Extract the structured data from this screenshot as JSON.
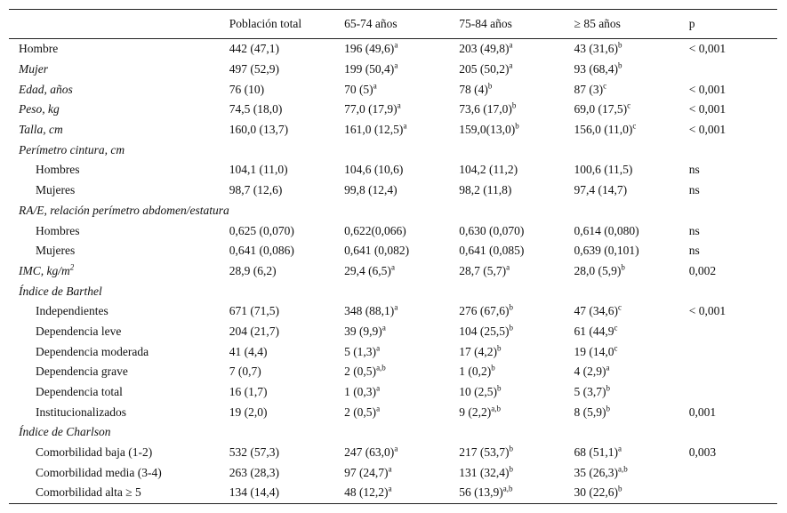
{
  "table": {
    "header": [
      "Población total",
      "65-74 años",
      "75-84 años",
      "≥ 85 años",
      "p"
    ],
    "rows": [
      {
        "label": "Hombre",
        "kind": "plain",
        "cells": [
          {
            "text": "442 (47,1)"
          },
          {
            "text": "196 (49,6)",
            "sup": "a"
          },
          {
            "text": "203 (49,8)",
            "sup": "a"
          },
          {
            "text": "43 (31,6)",
            "sup": "b"
          },
          {
            "text": "< 0,001"
          }
        ]
      },
      {
        "label": "Mujer",
        "kind": "italic",
        "cells": [
          {
            "text": "497 (52,9)"
          },
          {
            "text": "199 (50,4)",
            "sup": "a"
          },
          {
            "text": "205 (50,2)",
            "sup": "a"
          },
          {
            "text": "93 (68,4)",
            "sup": "b"
          }
        ]
      },
      {
        "label": "Edad, años",
        "kind": "italic",
        "cells": [
          {
            "text": "76 (10)"
          },
          {
            "text": "70 (5)",
            "sup": "a"
          },
          {
            "text": "78 (4)",
            "sup": "b"
          },
          {
            "text": "87 (3)",
            "sup": "c"
          },
          {
            "text": "< 0,001"
          }
        ]
      },
      {
        "label": "Peso, kg",
        "kind": "italic",
        "cells": [
          {
            "text": "74,5 (18,0)"
          },
          {
            "text": "77,0 (17,9)",
            "sup": "a"
          },
          {
            "text": "73,6 (17,0)",
            "sup": "b"
          },
          {
            "text": "69,0 (17,5)",
            "sup": "c"
          },
          {
            "text": "< 0,001"
          }
        ]
      },
      {
        "label": "Talla, cm",
        "kind": "italic",
        "cells": [
          {
            "text": "160,0 (13,7)"
          },
          {
            "text": "161,0 (12,5)",
            "sup": "a"
          },
          {
            "text": "159,0(13,0)",
            "sup": "b"
          },
          {
            "text": "156,0 (11,0)",
            "sup": "c"
          },
          {
            "text": "< 0,001"
          }
        ]
      },
      {
        "label": "Perímetro cintura, cm",
        "kind": "italic"
      },
      {
        "label": "Hombres",
        "kind": "indent",
        "cells": [
          {
            "text": "104,1 (11,0)"
          },
          {
            "text": "104,6 (10,6)"
          },
          {
            "text": "104,2 (11,2)"
          },
          {
            "text": "100,6 (11,5)"
          },
          {
            "text": "ns"
          }
        ]
      },
      {
        "label": "Mujeres",
        "kind": "indent",
        "cells": [
          {
            "text": "98,7 (12,6)"
          },
          {
            "text": "99,8 (12,4)"
          },
          {
            "text": "98,2 (11,8)"
          },
          {
            "text": "97,4 (14,7)"
          },
          {
            "text": "ns"
          }
        ]
      },
      {
        "label": "RA/E, relación perímetro abdomen/estatura",
        "kind": "italic"
      },
      {
        "label": "Hombres",
        "kind": "indent",
        "cells": [
          {
            "text": "0,625 (0,070)"
          },
          {
            "text": "0,622(0,066)"
          },
          {
            "text": "0,630 (0,070)"
          },
          {
            "text": "0,614 (0,080)"
          },
          {
            "text": "ns"
          }
        ]
      },
      {
        "label": "Mujeres",
        "kind": "indent",
        "cells": [
          {
            "text": "0,641 (0,086)"
          },
          {
            "text": "0,641 (0,082)"
          },
          {
            "text": "0,641 (0,085)"
          },
          {
            "text": "0,639 (0,101)"
          },
          {
            "text": "ns"
          }
        ]
      },
      {
        "label": "IMC, kg/m",
        "label_sup": "2",
        "kind": "italic",
        "cells": [
          {
            "text": "28,9 (6,2)"
          },
          {
            "text": "29,4 (6,5)",
            "sup": "a"
          },
          {
            "text": "28,7 (5,7)",
            "sup": "a"
          },
          {
            "text": "28,0 (5,9)",
            "sup": "b"
          },
          {
            "text": "0,002"
          }
        ]
      },
      {
        "label": "Índice de Barthel",
        "kind": "italic"
      },
      {
        "label": "Independientes",
        "kind": "indent",
        "cells": [
          {
            "text": "671 (71,5)"
          },
          {
            "text": "348 (88,1)",
            "sup": "a"
          },
          {
            "text": "276 (67,6)",
            "sup": "b"
          },
          {
            "text": "47 (34,6)",
            "sup": "c"
          },
          {
            "text": "< 0,001"
          }
        ]
      },
      {
        "label": "Dependencia leve",
        "kind": "indent",
        "cells": [
          {
            "text": "204 (21,7)"
          },
          {
            "text": "39 (9,9)",
            "sup": "a"
          },
          {
            "text": "104 (25,5)",
            "sup": "b"
          },
          {
            "text": "61 (44,9",
            "sup": "c"
          }
        ]
      },
      {
        "label": "Dependencia moderada",
        "kind": "indent",
        "cells": [
          {
            "text": "41 (4,4)"
          },
          {
            "text": "5 (1,3)",
            "sup": "a"
          },
          {
            "text": "17 (4,2)",
            "sup": "b"
          },
          {
            "text": "19 (14,0",
            "sup": "c"
          }
        ]
      },
      {
        "label": "Dependencia grave",
        "kind": "indent",
        "cells": [
          {
            "text": "7 (0,7)"
          },
          {
            "text": "2 (0,5)",
            "sup": "a,b"
          },
          {
            "text": "1 (0,2)",
            "sup": "b"
          },
          {
            "text": "4 (2,9)",
            "sup": "a"
          }
        ]
      },
      {
        "label": "Dependencia total",
        "kind": "indent",
        "cells": [
          {
            "text": "16 (1,7)"
          },
          {
            "text": "1 (0,3)",
            "sup": "a"
          },
          {
            "text": "10 (2,5)",
            "sup": "b"
          },
          {
            "text": "5 (3,7)",
            "sup": "b"
          }
        ]
      },
      {
        "label": "Institucionalizados",
        "kind": "indent",
        "cells": [
          {
            "text": "19 (2,0)"
          },
          {
            "text": "2 (0,5)",
            "sup": "a"
          },
          {
            "text": "9 (2,2)",
            "sup": "a,b"
          },
          {
            "text": "8 (5,9)",
            "sup": "b"
          },
          {
            "text": "0,001"
          }
        ]
      },
      {
        "label": "Índice de Charlson",
        "kind": "italic"
      },
      {
        "label": "Comorbilidad baja (1-2)",
        "kind": "indent",
        "cells": [
          {
            "text": "532 (57,3)"
          },
          {
            "text": "247 (63,0)",
            "sup": "a"
          },
          {
            "text": "217 (53,7)",
            "sup": "b"
          },
          {
            "text": "68 (51,1)",
            "sup": "a"
          },
          {
            "text": "0,003"
          }
        ]
      },
      {
        "label": "Comorbilidad media (3-4)",
        "kind": "indent",
        "cells": [
          {
            "text": "263 (28,3)"
          },
          {
            "text": "97 (24,7)",
            "sup": "a"
          },
          {
            "text": "131 (32,4)",
            "sup": "b"
          },
          {
            "text": "35 (26,3)",
            "sup": "a,b"
          }
        ]
      },
      {
        "label": "Comorbilidad alta ≥ 5",
        "kind": "indent",
        "cells": [
          {
            "text": "134 (14,4)"
          },
          {
            "text": "48 (12,2)",
            "sup": "a"
          },
          {
            "text": "56 (13,9)",
            "sup": "a,b"
          },
          {
            "text": "30 (22,6)",
            "sup": "b"
          }
        ]
      }
    ]
  }
}
